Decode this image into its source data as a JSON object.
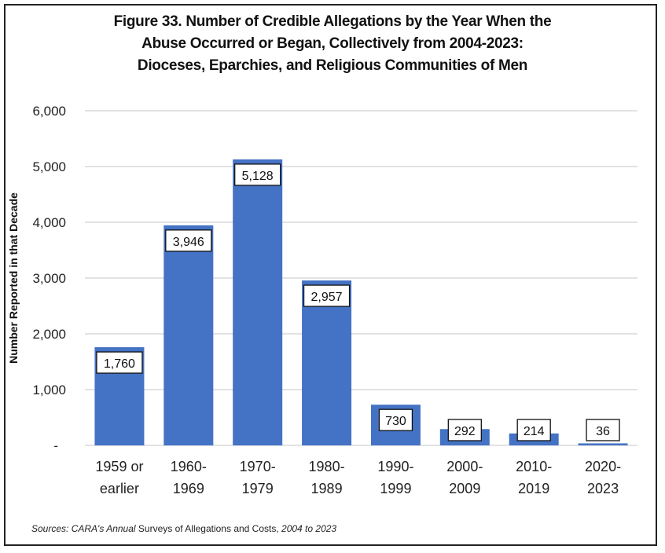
{
  "chart_data": {
    "type": "bar",
    "title_lines": [
      "Figure 33. Number of Credible Allegations by the Year When the",
      "Abuse Occurred or Began, Collectively from 2004-2023:",
      "Dioceses, Eparchies, and Religious Communities of Men"
    ],
    "categories": [
      [
        "1959 or",
        "earlier"
      ],
      [
        "1960-",
        "1969"
      ],
      [
        "1970-",
        "1979"
      ],
      [
        "1980-",
        "1989"
      ],
      [
        "1990-",
        "1999"
      ],
      [
        "2000-",
        "2009"
      ],
      [
        "2010-",
        "2019"
      ],
      [
        "2020-",
        "2023"
      ]
    ],
    "values": [
      1760,
      3946,
      5128,
      2957,
      730,
      292,
      214,
      36
    ],
    "data_labels": [
      "1,760",
      "3,946",
      "5,128",
      "2,957",
      "730",
      "292",
      "214",
      "36"
    ],
    "xlabel": "",
    "ylabel": "Number Reported in that Decade",
    "ylim": [
      0,
      6000
    ],
    "yticks": [
      0,
      1000,
      2000,
      3000,
      4000,
      5000,
      6000
    ],
    "ytick_labels": [
      "-",
      "1,000",
      "2,000",
      "3,000",
      "4,000",
      "5,000",
      "6,000"
    ],
    "grid": true,
    "legend": "none",
    "bar_color": "#4472C4",
    "gridline_color": "#D9D9D9"
  },
  "sources": {
    "prefix": "Sources: CARA's Annual",
    "middle": " Surveys of Allegations and Costs,",
    "suffix": " 2004 to 2023"
  }
}
